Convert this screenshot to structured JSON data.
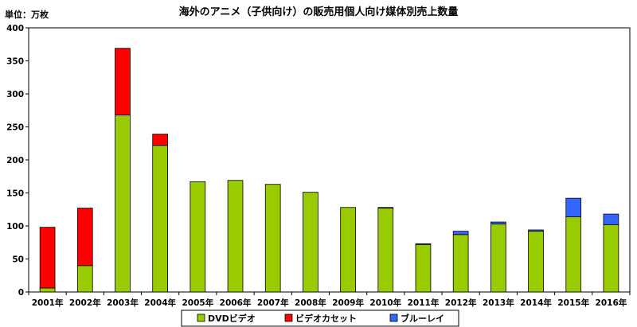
{
  "chart_data": {
    "type": "bar",
    "stacked": true,
    "title": "海外のアニメ（子供向け）の販売用個人向け媒体別売上数量",
    "unit_label": "単位：万枚",
    "categories": [
      "2001年",
      "2002年",
      "2003年",
      "2004年",
      "2005年",
      "2006年",
      "2007年",
      "2008年",
      "2009年",
      "2010年",
      "2011年",
      "2012年",
      "2013年",
      "2014年",
      "2015年",
      "2016年"
    ],
    "series": [
      {
        "name": "DVDビデオ",
        "color": "#99CC00",
        "values": [
          6,
          40,
          268,
          222,
          167,
          169,
          163,
          151,
          128,
          127,
          72,
          87,
          103,
          92,
          114,
          102
        ]
      },
      {
        "name": "ビデオカセット",
        "color": "#FF0000",
        "values": [
          92,
          87,
          101,
          17,
          0,
          0,
          0,
          0,
          0,
          0,
          0,
          0,
          0,
          0,
          0,
          0
        ]
      },
      {
        "name": "ブルーレイ",
        "color": "#3366FF",
        "values": [
          0,
          0,
          0,
          0,
          0,
          0,
          0,
          0,
          0,
          1,
          1,
          5,
          3,
          2,
          28,
          16
        ]
      }
    ],
    "ylim": [
      0,
      400
    ],
    "yticks": [
      0,
      50,
      100,
      150,
      200,
      250,
      300,
      350,
      400
    ],
    "grid": false,
    "legend_position": "bottom"
  }
}
